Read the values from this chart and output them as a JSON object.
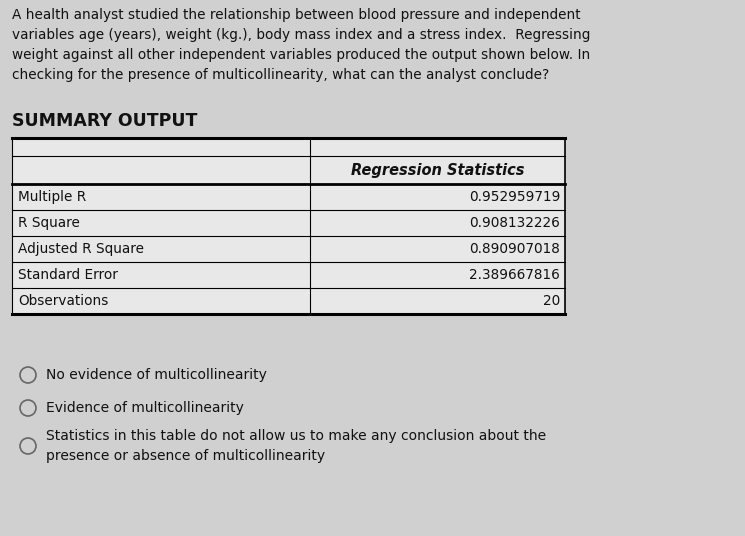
{
  "background_color": "#d0d0d0",
  "table_bg_color": "#e8e8e8",
  "question_text": "A health analyst studied the relationship between blood pressure and independent\nvariables age (years), weight (kg.), body mass index and a stress index.  Regressing\nweight against all other independent variables produced the output shown below. In\nchecking for the presence of multicollinearity, what can the analyst conclude?",
  "summary_label": "SUMMARY OUTPUT",
  "table_header": "Regression Statistics",
  "table_rows": [
    [
      "Multiple R",
      "0.952959719"
    ],
    [
      "R Square",
      "0.908132226"
    ],
    [
      "Adjusted R Square",
      "0.890907018"
    ],
    [
      "Standard Error",
      "2.389667816"
    ],
    [
      "Observations",
      "20"
    ]
  ],
  "options": [
    "No evidence of multicollinearity",
    "Evidence of multicollinearity",
    "Statistics in this table do not allow us to make any conclusion about the\npresence or absence of multicollinearity"
  ],
  "question_fontsize": 9.8,
  "summary_fontsize": 12.5,
  "table_header_fontsize": 10.5,
  "table_row_fontsize": 9.8,
  "option_fontsize": 10.0
}
